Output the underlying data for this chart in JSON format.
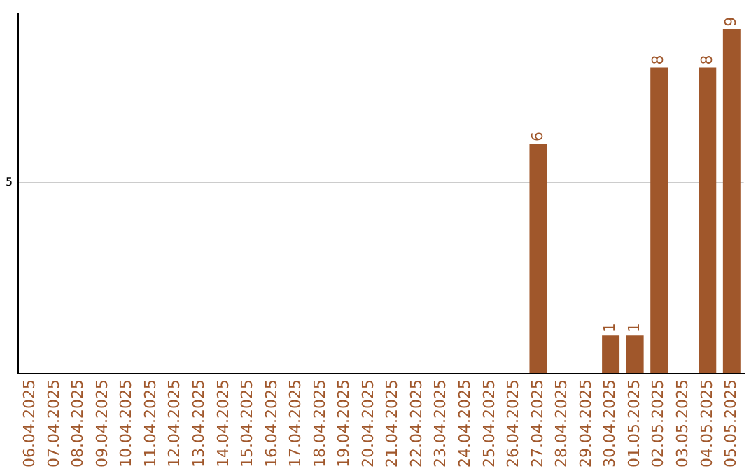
{
  "chart_data": {
    "type": "bar",
    "categories": [
      "06.04.2025",
      "07.04.2025",
      "08.04.2025",
      "09.04.2025",
      "10.04.2025",
      "11.04.2025",
      "12.04.2025",
      "13.04.2025",
      "14.04.2025",
      "15.04.2025",
      "16.04.2025",
      "17.04.2025",
      "18.04.2025",
      "19.04.2025",
      "20.04.2025",
      "21.04.2025",
      "22.04.2025",
      "23.04.2025",
      "24.04.2025",
      "25.04.2025",
      "26.04.2025",
      "27.04.2025",
      "28.04.2025",
      "29.04.2025",
      "30.04.2025",
      "01.05.2025",
      "02.05.2025",
      "03.05.2025",
      "04.05.2025",
      "05.05.2025"
    ],
    "values": [
      null,
      null,
      null,
      null,
      null,
      null,
      null,
      null,
      null,
      null,
      null,
      null,
      null,
      null,
      null,
      null,
      null,
      null,
      null,
      null,
      null,
      6,
      null,
      null,
      1,
      1,
      8,
      null,
      8,
      9
    ],
    "data_labels": true,
    "color": "#a0572b",
    "ylim": [
      0,
      9.4
    ],
    "yticks": [
      {
        "value": 0,
        "label": null
      },
      5
    ],
    "grid": "y"
  }
}
